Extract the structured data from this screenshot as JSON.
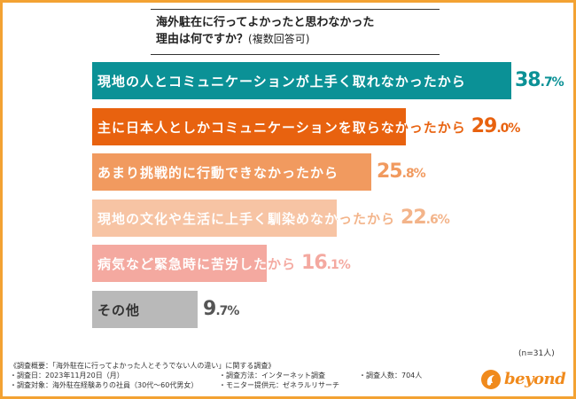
{
  "chart_data": {
    "type": "bar",
    "orientation": "horizontal",
    "title_line1": "海外駐在に行ってよかったと思わなかった",
    "title_line2": "理由は何ですか？",
    "title_suffix": "(複数回答可)",
    "value_format": "percent",
    "xlim": [
      0,
      40
    ],
    "categories": [
      "現地の人とコミュニケーションが上手く取れなかったから",
      "主に日本人としかコミュニケーションを取らなかったから",
      "あまり挑戦的に行動できなかったから",
      "現地の文化や生活に上手く馴染めなかったから",
      "病気など緊急時に苦労したから",
      "その他"
    ],
    "values": [
      38.7,
      29.0,
      25.8,
      22.6,
      16.1,
      9.7
    ],
    "value_labels": [
      {
        "int": "38",
        "dec": ".7",
        "unit": "%"
      },
      {
        "int": "29",
        "dec": ".0",
        "unit": "%"
      },
      {
        "int": "25",
        "dec": ".8",
        "unit": "%"
      },
      {
        "int": "22",
        "dec": ".6",
        "unit": "%"
      },
      {
        "int": "16",
        "dec": ".1",
        "unit": "%"
      },
      {
        "int": "9",
        "dec": ".7",
        "unit": "%"
      }
    ],
    "colors": [
      "#0b9196",
      "#e8620f",
      "#f19a5f",
      "#f7c4a4",
      "#f4a9a0",
      "#b9b9b9"
    ],
    "value_colors": [
      "#0b9196",
      "#e8620f",
      "#f19a5f",
      "#f3b48a",
      "#f4a9a0",
      "#555555"
    ],
    "sample_note": "(n=31人)"
  },
  "survey": {
    "title": "《調査概要：「海外駐在に行ってよかった人とそうでない人の違い」に関する調査》",
    "date": "・調査日：2023年11月20日（月）",
    "method": "・調査方法：インターネット調査",
    "count": "・調査人数：704人",
    "target": "・調査対象：海外駐在経験ありの社員（30代～60代男女）",
    "provider": "・モニター提供元：ゼネラルリサーチ"
  },
  "brand": {
    "name": "beyond",
    "color": "#f08a1c",
    "frame_color": "#f3a233"
  }
}
